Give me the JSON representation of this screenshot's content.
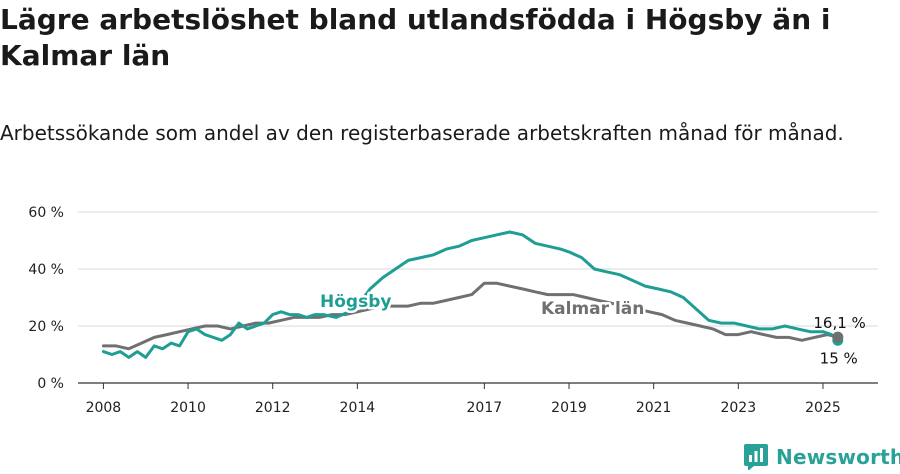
{
  "title": "Lägre arbetslöshet bland utlandsfödda i Högsby än i Kalmar län",
  "subtitle": "Arbetssökande som andel av den registerbaserade arbetskraften månad för månad.",
  "brand": {
    "name": "Newsworthy",
    "icon": "newsworthy-logo-icon"
  },
  "colors": {
    "hogsby": "#1e9e94",
    "kalmar": "#707070",
    "grid": "#d9d9d9",
    "axis": "#333333"
  },
  "chart_data": {
    "type": "line",
    "xlim": [
      2007.4,
      2026.3
    ],
    "ylim": [
      0,
      60
    ],
    "y_ticks": [
      {
        "value": 0,
        "label": "0 %"
      },
      {
        "value": 20,
        "label": "20 %"
      },
      {
        "value": 40,
        "label": "40 %"
      },
      {
        "value": 60,
        "label": "60 %"
      }
    ],
    "x_ticks": [
      {
        "value": 2008,
        "label": "2008"
      },
      {
        "value": 2010,
        "label": "2010"
      },
      {
        "value": 2012,
        "label": "2012"
      },
      {
        "value": 2014,
        "label": "2014"
      },
      {
        "value": 2017,
        "label": "2017"
      },
      {
        "value": 2019,
        "label": "2019"
      },
      {
        "value": 2021,
        "label": "2021"
      },
      {
        "value": 2023,
        "label": "2023"
      },
      {
        "value": 2025,
        "label": "2025"
      }
    ],
    "grid": "horizontal",
    "series": [
      {
        "name": "Högsby",
        "color": "#1e9e94",
        "end_label": "15 %",
        "points": [
          [
            2008.0,
            11
          ],
          [
            2008.2,
            10
          ],
          [
            2008.4,
            11
          ],
          [
            2008.6,
            9
          ],
          [
            2008.8,
            11
          ],
          [
            2009.0,
            9
          ],
          [
            2009.2,
            13
          ],
          [
            2009.4,
            12
          ],
          [
            2009.6,
            14
          ],
          [
            2009.8,
            13
          ],
          [
            2010.0,
            18
          ],
          [
            2010.2,
            19
          ],
          [
            2010.4,
            17
          ],
          [
            2010.6,
            16
          ],
          [
            2010.8,
            15
          ],
          [
            2011.0,
            17
          ],
          [
            2011.2,
            21
          ],
          [
            2011.4,
            19
          ],
          [
            2011.6,
            20
          ],
          [
            2011.8,
            21
          ],
          [
            2012.0,
            24
          ],
          [
            2012.2,
            25
          ],
          [
            2012.4,
            24
          ],
          [
            2012.6,
            24
          ],
          [
            2012.8,
            23
          ],
          [
            2013.0,
            24
          ],
          [
            2013.2,
            24
          ],
          [
            2013.5,
            23
          ],
          [
            2013.8,
            25
          ],
          [
            2014.0,
            27
          ],
          [
            2014.3,
            33
          ],
          [
            2014.6,
            37
          ],
          [
            2014.9,
            40
          ],
          [
            2015.2,
            43
          ],
          [
            2015.5,
            44
          ],
          [
            2015.8,
            45
          ],
          [
            2016.1,
            47
          ],
          [
            2016.4,
            48
          ],
          [
            2016.7,
            50
          ],
          [
            2017.0,
            51
          ],
          [
            2017.3,
            52
          ],
          [
            2017.6,
            53
          ],
          [
            2017.9,
            52
          ],
          [
            2018.2,
            49
          ],
          [
            2018.5,
            48
          ],
          [
            2018.8,
            47
          ],
          [
            2019.0,
            46
          ],
          [
            2019.3,
            44
          ],
          [
            2019.6,
            40
          ],
          [
            2019.9,
            39
          ],
          [
            2020.2,
            38
          ],
          [
            2020.5,
            36
          ],
          [
            2020.8,
            34
          ],
          [
            2021.1,
            33
          ],
          [
            2021.4,
            32
          ],
          [
            2021.7,
            30
          ],
          [
            2022.0,
            26
          ],
          [
            2022.3,
            22
          ],
          [
            2022.6,
            21
          ],
          [
            2022.9,
            21
          ],
          [
            2023.2,
            20
          ],
          [
            2023.5,
            19
          ],
          [
            2023.8,
            19
          ],
          [
            2024.1,
            20
          ],
          [
            2024.4,
            19
          ],
          [
            2024.7,
            18
          ],
          [
            2025.0,
            18
          ],
          [
            2025.2,
            17
          ],
          [
            2025.35,
            15
          ]
        ]
      },
      {
        "name": "Kalmar län",
        "color": "#707070",
        "end_label": "16,1 %",
        "points": [
          [
            2008.0,
            13
          ],
          [
            2008.3,
            13
          ],
          [
            2008.6,
            12
          ],
          [
            2008.9,
            14
          ],
          [
            2009.2,
            16
          ],
          [
            2009.5,
            17
          ],
          [
            2009.8,
            18
          ],
          [
            2010.1,
            19
          ],
          [
            2010.4,
            20
          ],
          [
            2010.7,
            20
          ],
          [
            2011.0,
            19
          ],
          [
            2011.3,
            20
          ],
          [
            2011.6,
            21
          ],
          [
            2011.9,
            21
          ],
          [
            2012.2,
            22
          ],
          [
            2012.5,
            23
          ],
          [
            2012.8,
            23
          ],
          [
            2013.1,
            23
          ],
          [
            2013.4,
            24
          ],
          [
            2013.7,
            24
          ],
          [
            2014.0,
            25
          ],
          [
            2014.3,
            26
          ],
          [
            2014.6,
            27
          ],
          [
            2014.9,
            27
          ],
          [
            2015.2,
            27
          ],
          [
            2015.5,
            28
          ],
          [
            2015.8,
            28
          ],
          [
            2016.1,
            29
          ],
          [
            2016.4,
            30
          ],
          [
            2016.7,
            31
          ],
          [
            2017.0,
            35
          ],
          [
            2017.3,
            35
          ],
          [
            2017.6,
            34
          ],
          [
            2017.9,
            33
          ],
          [
            2018.2,
            32
          ],
          [
            2018.5,
            31
          ],
          [
            2018.8,
            31
          ],
          [
            2019.1,
            31
          ],
          [
            2019.4,
            30
          ],
          [
            2019.7,
            29
          ],
          [
            2020.0,
            28
          ],
          [
            2020.3,
            27
          ],
          [
            2020.6,
            26
          ],
          [
            2020.9,
            25
          ],
          [
            2021.2,
            24
          ],
          [
            2021.5,
            22
          ],
          [
            2021.8,
            21
          ],
          [
            2022.1,
            20
          ],
          [
            2022.4,
            19
          ],
          [
            2022.7,
            17
          ],
          [
            2023.0,
            17
          ],
          [
            2023.3,
            18
          ],
          [
            2023.6,
            17
          ],
          [
            2023.9,
            16
          ],
          [
            2024.2,
            16
          ],
          [
            2024.5,
            15
          ],
          [
            2024.8,
            16
          ],
          [
            2025.1,
            17
          ],
          [
            2025.35,
            16.1
          ]
        ]
      }
    ]
  }
}
